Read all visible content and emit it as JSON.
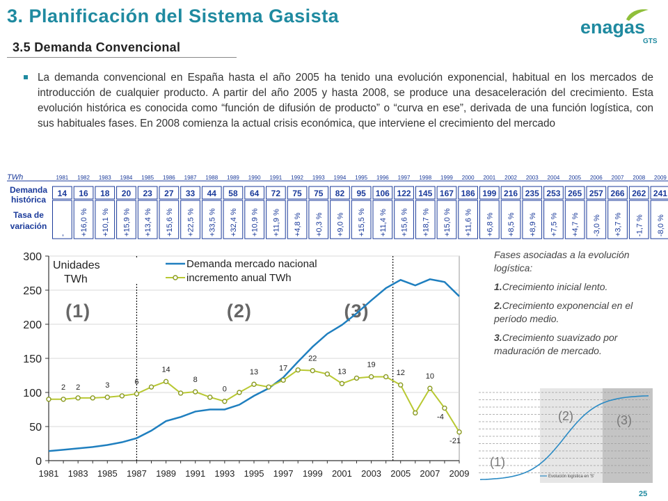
{
  "header": {
    "title": "3. Planificación del Sistema Gasista",
    "subtitle": "3.5 Demanda Convencional",
    "logo_text": "enagas",
    "logo_sub": "GTS"
  },
  "body": {
    "paragraph": "La demanda convencional en España hasta el año 2005 ha tenido una evolución exponencial, habitual en los mercados de introducción de cualquier producto. A partir del año 2005 y hasta 2008, se produce una desaceleración del crecimiento. Esta evolución histórica es conocida como “función de difusión de producto” o “curva en ese”, derivada de una función logística, con sus habituales fases. En 2008 comienza la actual crisis económica, que interviene el crecimiento del mercado"
  },
  "table": {
    "unit_label": "TWh",
    "row1_label": [
      "Demanda",
      "histórica"
    ],
    "row2_label": [
      "Tasa de",
      "variación"
    ],
    "years": [
      "1981",
      "1982",
      "1983",
      "1984",
      "1985",
      "1986",
      "1987",
      "1988",
      "1989",
      "1990",
      "1991",
      "1992",
      "1993",
      "1994",
      "1995",
      "1996",
      "1997",
      "1998",
      "1999",
      "2000",
      "2001",
      "2002",
      "2003",
      "2004",
      "2005",
      "2006",
      "2007",
      "2008",
      "2009"
    ],
    "demand": [
      "14",
      "16",
      "18",
      "20",
      "23",
      "27",
      "33",
      "44",
      "58",
      "64",
      "72",
      "75",
      "75",
      "82",
      "95",
      "106",
      "122",
      "145",
      "167",
      "186",
      "199",
      "216",
      "235",
      "253",
      "265",
      "257",
      "266",
      "262",
      "241"
    ],
    "rate": [
      "-",
      "+16,0 %",
      "+10,1 %",
      "+15,9 %",
      "+13,4 %",
      "+15,6 %",
      "+22,5 %",
      "+33,5 %",
      "+32,4 %",
      "+10,9 %",
      "+11,9 %",
      "+4,8 %",
      "+0,3 %",
      "+9,0 %",
      "+15,5 %",
      "+11,4 %",
      "+15,6 %",
      "+18,7 %",
      "+15,0 %",
      "+11,6 %",
      "+6,8 %",
      "+8,5 %",
      "+8,9 %",
      "+7,5 %",
      "+4,7 %",
      "-3,0 %",
      "+3,7 %",
      "-1,7 %",
      "-8,0 %"
    ]
  },
  "fases": {
    "intro": "Fases asociadas a la evolución logística:",
    "items": [
      {
        "num": "1.",
        "text": "Crecimiento inicial lento."
      },
      {
        "num": "2.",
        "text": "Crecimiento exponencial en el período medio."
      },
      {
        "num": "3.",
        "text": "Crecimiento suavizado por maduración de mercado."
      }
    ]
  },
  "mini_chart": {
    "phase_labels": [
      "(1)",
      "(2)",
      "(3)"
    ],
    "legend": "Evolución logística en 'S'",
    "colors": {
      "phase2": "#e6e6e6",
      "phase3": "#c4c4c4",
      "curve": "#2a8ac4"
    }
  },
  "chart_data": {
    "type": "line",
    "x": [
      1981,
      1982,
      1983,
      1984,
      1985,
      1986,
      1987,
      1988,
      1989,
      1990,
      1991,
      1992,
      1993,
      1994,
      1995,
      1996,
      1997,
      1998,
      1999,
      2000,
      2001,
      2002,
      2003,
      2004,
      2005,
      2006,
      2007,
      2008,
      2009
    ],
    "xticks": [
      "1981",
      "1983",
      "1985",
      "1987",
      "1989",
      "1991",
      "1993",
      "1995",
      "1997",
      "1999",
      "2001",
      "2003",
      "2005",
      "2007",
      "2009"
    ],
    "yticks": [
      "0",
      "50",
      "100",
      "150",
      "200",
      "250",
      "300"
    ],
    "ylim": [
      0,
      300
    ],
    "legend_title": [
      "Unidades",
      "TWh"
    ],
    "series": [
      {
        "name": "Demanda mercado nacional",
        "color": "#1f7fbf",
        "values": [
          14,
          16,
          18,
          20,
          23,
          27,
          33,
          44,
          58,
          64,
          72,
          75,
          75,
          82,
          95,
          106,
          122,
          145,
          167,
          186,
          199,
          216,
          235,
          253,
          265,
          257,
          266,
          262,
          241
        ]
      },
      {
        "name": "incremento anual TWh",
        "color": "#b8c832",
        "values": [
          90,
          90,
          92,
          92,
          93,
          95,
          98,
          108,
          116,
          99,
          101,
          93,
          87,
          100,
          112,
          108,
          118,
          133,
          132,
          127,
          113,
          121,
          123,
          123,
          111,
          70,
          106,
          77,
          42
        ]
      }
    ],
    "annotations": [
      {
        "x": 1982,
        "y": 90,
        "label": "2"
      },
      {
        "x": 1983,
        "y": 90,
        "label": "2"
      },
      {
        "x": 1985,
        "y": 93,
        "label": "3"
      },
      {
        "x": 1987,
        "y": 98,
        "label": "6"
      },
      {
        "x": 1989,
        "y": 116,
        "label": "14"
      },
      {
        "x": 1991,
        "y": 101,
        "label": "8"
      },
      {
        "x": 1993,
        "y": 87,
        "label": "0"
      },
      {
        "x": 1995,
        "y": 112,
        "label": "13"
      },
      {
        "x": 1997,
        "y": 118,
        "label": "17"
      },
      {
        "x": 1999,
        "y": 132,
        "label": "22"
      },
      {
        "x": 2001,
        "y": 113,
        "label": "13"
      },
      {
        "x": 2003,
        "y": 123,
        "label": "19"
      },
      {
        "x": 2005,
        "y": 111,
        "label": "12"
      },
      {
        "x": 2007,
        "y": 106,
        "label": "10"
      },
      {
        "x": 2008,
        "y": 77,
        "label": "-4"
      },
      {
        "x": 2009,
        "y": 42,
        "label": "-21"
      }
    ],
    "phase_markers": [
      1987,
      2004
    ],
    "phase_labels": [
      {
        "x": 1983,
        "label": "(1)"
      },
      {
        "x": 1994,
        "label": "(2)"
      },
      {
        "x": 2002,
        "label": "(3)"
      }
    ]
  }
}
